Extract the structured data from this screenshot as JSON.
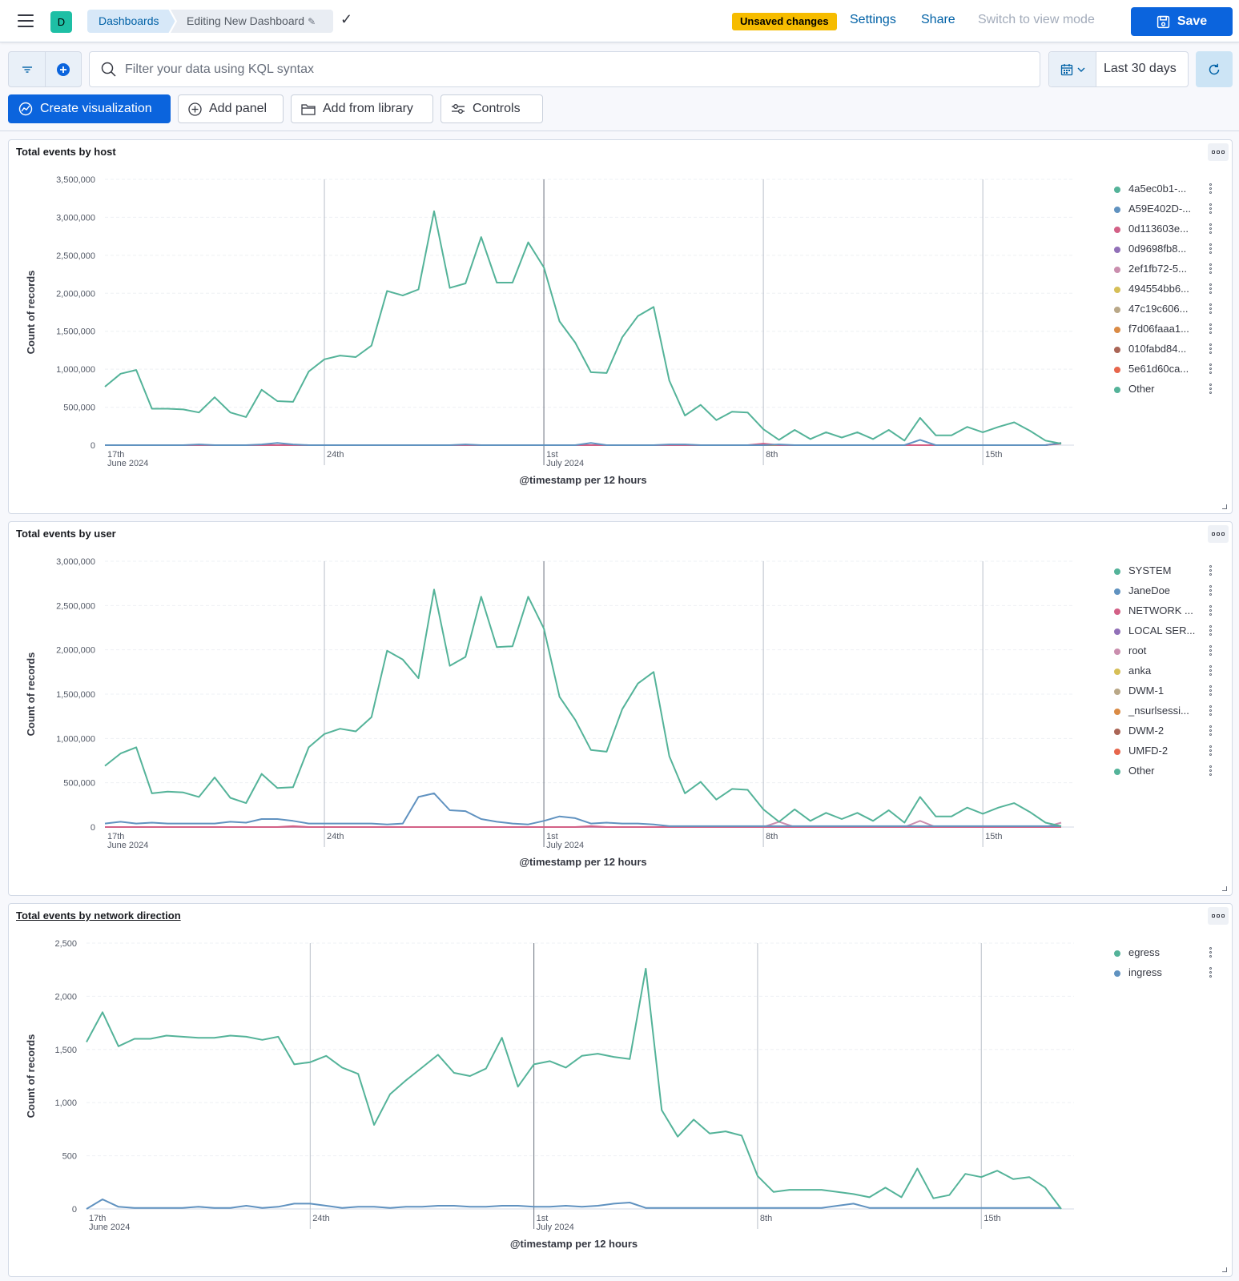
{
  "header": {
    "avatar_letter": "D",
    "breadcrumb_root": "Dashboards",
    "breadcrumb_current": "Editing New Dashboard",
    "unsaved_badge": "Unsaved changes",
    "settings_label": "Settings",
    "share_label": "Share",
    "view_mode_label": "Switch to view mode",
    "save_label": "Save"
  },
  "query": {
    "placeholder": "Filter your data using KQL syntax",
    "date_range": "Last 30 days"
  },
  "actions": {
    "create_visualization": "Create visualization",
    "add_panel": "Add panel",
    "add_from_library": "Add from library",
    "controls": "Controls"
  },
  "colors": {
    "series": [
      "#54b399",
      "#6092c0",
      "#d36086",
      "#9170b8",
      "#ca8eae",
      "#d6bf57",
      "#b9a888",
      "#da8b45",
      "#aa6556",
      "#e7664c",
      "#54b399"
    ]
  },
  "chart_data": [
    {
      "type": "line",
      "title": "Total events by host",
      "xlabel": "@timestamp per 12 hours",
      "ylabel": "Count of records",
      "ylim": [
        0,
        3500000
      ],
      "yticks": [
        "0",
        "500,000",
        "1,000,000",
        "1,500,000",
        "2,000,000",
        "2,500,000",
        "3,000,000",
        "3,500,000"
      ],
      "xticks": [
        {
          "label": "17th",
          "sub": "June 2024",
          "pos": 0
        },
        {
          "label": "24th",
          "sub": "",
          "pos": 14
        },
        {
          "label": "1st",
          "sub": "July 2024",
          "pos": 28
        },
        {
          "label": "8th",
          "sub": "",
          "pos": 42
        },
        {
          "label": "15th",
          "sub": "",
          "pos": 56
        }
      ],
      "x_count": 62,
      "legend_position": "right",
      "series": [
        {
          "name": "4a5ec0b1-...",
          "values": [
            770000,
            940000,
            990000,
            480000,
            480000,
            470000,
            430000,
            630000,
            430000,
            370000,
            730000,
            580000,
            570000,
            970000,
            1130000,
            1180000,
            1160000,
            1310000,
            2030000,
            1970000,
            2050000,
            3080000,
            2070000,
            2130000,
            2740000,
            2140000,
            2140000,
            2670000,
            2340000,
            1630000,
            1350000,
            960000,
            950000,
            1420000,
            1700000,
            1820000,
            850000,
            390000,
            530000,
            330000,
            440000,
            430000,
            210000,
            70000,
            200000,
            80000,
            170000,
            100000,
            170000,
            80000,
            200000,
            60000,
            360000,
            130000,
            130000,
            240000,
            170000,
            240000,
            300000,
            190000,
            60000,
            20000
          ]
        },
        {
          "name": "A59E402D-...",
          "values": [
            0,
            0,
            0,
            0,
            0,
            0,
            10000,
            0,
            0,
            0,
            10000,
            30000,
            10000,
            0,
            0,
            0,
            0,
            0,
            0,
            0,
            0,
            0,
            0,
            10000,
            0,
            0,
            0,
            0,
            0,
            0,
            0,
            30000,
            0,
            0,
            0,
            0,
            10000,
            10000,
            0,
            0,
            0,
            0,
            0,
            10000,
            0,
            0,
            0,
            0,
            0,
            0,
            0,
            0,
            70000,
            0,
            0,
            0,
            0,
            0,
            0,
            0,
            0,
            30000
          ]
        },
        {
          "name": "0d113603e...",
          "values": [
            0,
            0,
            0,
            0,
            0,
            0,
            0,
            0,
            0,
            0,
            0,
            0,
            0,
            0,
            0,
            0,
            0,
            0,
            0,
            0,
            0,
            0,
            0,
            0,
            0,
            0,
            0,
            0,
            0,
            0,
            0,
            0,
            0,
            0,
            0,
            0,
            0,
            0,
            0,
            0,
            0,
            0,
            20000,
            0,
            0,
            0,
            0,
            0,
            0,
            0,
            0,
            0,
            0,
            0,
            0,
            0,
            0,
            0,
            0,
            0,
            0,
            20000
          ]
        },
        {
          "name": "0d9698fb8...",
          "values": []
        },
        {
          "name": "2ef1fb72-5...",
          "values": []
        },
        {
          "name": "494554bb6...",
          "values": []
        },
        {
          "name": "47c19c606...",
          "values": []
        },
        {
          "name": "f7d06faaa1...",
          "values": [
            0,
            0,
            0,
            0,
            0,
            0,
            0,
            0,
            0,
            0,
            0,
            0,
            0,
            0,
            0,
            0,
            0,
            0,
            0,
            0,
            0,
            0,
            0,
            0,
            0,
            0,
            0,
            0,
            0,
            0,
            0,
            0,
            0,
            0,
            0,
            0,
            0,
            0,
            0,
            0,
            0,
            0,
            0,
            0,
            0,
            0,
            0,
            0,
            0,
            0,
            0,
            0,
            0,
            0,
            0,
            0,
            0,
            0,
            0,
            0,
            0,
            30000
          ]
        },
        {
          "name": "010fabd84...",
          "values": []
        },
        {
          "name": "5e61d60ca...",
          "values": []
        },
        {
          "name": "Other",
          "values": []
        }
      ]
    },
    {
      "type": "line",
      "title": "Total events by user",
      "xlabel": "@timestamp per 12 hours",
      "ylabel": "Count of records",
      "ylim": [
        0,
        3000000
      ],
      "yticks": [
        "0",
        "500,000",
        "1,000,000",
        "1,500,000",
        "2,000,000",
        "2,500,000",
        "3,000,000"
      ],
      "xticks": [
        {
          "label": "17th",
          "sub": "June 2024",
          "pos": 0
        },
        {
          "label": "24th",
          "sub": "",
          "pos": 14
        },
        {
          "label": "1st",
          "sub": "July 2024",
          "pos": 28
        },
        {
          "label": "8th",
          "sub": "",
          "pos": 42
        },
        {
          "label": "15th",
          "sub": "",
          "pos": 56
        }
      ],
      "x_count": 62,
      "legend_position": "right",
      "series": [
        {
          "name": "SYSTEM",
          "values": [
            690000,
            830000,
            900000,
            380000,
            400000,
            390000,
            340000,
            560000,
            330000,
            270000,
            600000,
            440000,
            450000,
            900000,
            1050000,
            1110000,
            1080000,
            1240000,
            1990000,
            1890000,
            1680000,
            2680000,
            1820000,
            1920000,
            2600000,
            2030000,
            2040000,
            2600000,
            2240000,
            1470000,
            1210000,
            870000,
            850000,
            1330000,
            1620000,
            1750000,
            800000,
            380000,
            510000,
            310000,
            430000,
            420000,
            200000,
            60000,
            200000,
            70000,
            160000,
            90000,
            160000,
            70000,
            190000,
            50000,
            340000,
            120000,
            120000,
            220000,
            150000,
            220000,
            270000,
            170000,
            50000,
            10000
          ]
        },
        {
          "name": "JaneDoe",
          "values": [
            40000,
            60000,
            40000,
            50000,
            40000,
            40000,
            40000,
            40000,
            60000,
            50000,
            90000,
            90000,
            70000,
            40000,
            40000,
            40000,
            40000,
            40000,
            30000,
            40000,
            340000,
            380000,
            190000,
            180000,
            90000,
            60000,
            40000,
            30000,
            70000,
            120000,
            100000,
            40000,
            50000,
            40000,
            40000,
            30000,
            10000,
            10000,
            10000,
            10000,
            10000,
            10000,
            10000,
            10000,
            10000,
            10000,
            10000,
            10000,
            10000,
            10000,
            10000,
            10000,
            10000,
            10000,
            10000,
            10000,
            10000,
            10000,
            10000,
            10000,
            10000,
            10000
          ]
        },
        {
          "name": "NETWORK ...",
          "values": [
            0,
            0,
            0,
            0,
            0,
            0,
            0,
            0,
            0,
            0,
            0,
            0,
            10000,
            0,
            0,
            0,
            0,
            0,
            0,
            0,
            0,
            0,
            0,
            0,
            0,
            0,
            0,
            0,
            0,
            0,
            0,
            10000,
            0,
            0,
            0,
            0,
            0,
            0,
            0,
            0,
            0,
            0,
            0,
            0,
            0,
            0,
            0,
            0,
            0,
            0,
            0,
            0,
            0,
            0,
            0,
            0,
            0,
            0,
            0,
            0,
            0,
            0
          ]
        },
        {
          "name": "LOCAL SER...",
          "values": []
        },
        {
          "name": "root",
          "values": [
            0,
            0,
            0,
            0,
            0,
            0,
            0,
            0,
            0,
            0,
            0,
            0,
            0,
            0,
            0,
            0,
            0,
            0,
            0,
            0,
            0,
            0,
            0,
            0,
            0,
            0,
            0,
            0,
            0,
            0,
            0,
            0,
            0,
            0,
            0,
            0,
            0,
            0,
            0,
            0,
            0,
            0,
            0,
            60000,
            0,
            0,
            0,
            0,
            0,
            0,
            0,
            0,
            70000,
            0,
            0,
            0,
            0,
            0,
            0,
            0,
            0,
            50000
          ]
        },
        {
          "name": "anka",
          "values": []
        },
        {
          "name": "DWM-1",
          "values": []
        },
        {
          "name": "_nsurlsessi...",
          "values": []
        },
        {
          "name": "DWM-2",
          "values": []
        },
        {
          "name": "UMFD-2",
          "values": []
        },
        {
          "name": "Other",
          "values": []
        }
      ]
    },
    {
      "type": "line",
      "title": "Total events by network direction",
      "xlabel": "@timestamp per 12 hours",
      "ylabel": "Count of records",
      "ylim": [
        0,
        2500
      ],
      "yticks": [
        "0",
        "500",
        "1,000",
        "1,500",
        "2,000",
        "2,500"
      ],
      "xticks": [
        {
          "label": "17th",
          "sub": "June 2024",
          "pos": 0
        },
        {
          "label": "24th",
          "sub": "",
          "pos": 14
        },
        {
          "label": "1st",
          "sub": "July 2024",
          "pos": 28
        },
        {
          "label": "8th",
          "sub": "",
          "pos": 42
        },
        {
          "label": "15th",
          "sub": "",
          "pos": 56
        }
      ],
      "x_count": 62,
      "legend_position": "right",
      "series": [
        {
          "name": "egress",
          "values": [
            1570,
            1850,
            1530,
            1600,
            1600,
            1630,
            1620,
            1610,
            1610,
            1630,
            1620,
            1590,
            1620,
            1360,
            1380,
            1440,
            1330,
            1270,
            790,
            1080,
            1210,
            1330,
            1450,
            1280,
            1250,
            1320,
            1610,
            1150,
            1360,
            1390,
            1330,
            1440,
            1460,
            1430,
            1410,
            2260,
            930,
            680,
            840,
            710,
            730,
            690,
            310,
            160,
            180,
            180,
            180,
            160,
            140,
            110,
            200,
            110,
            380,
            100,
            130,
            330,
            300,
            360,
            280,
            300,
            200,
            0
          ]
        },
        {
          "name": "ingress",
          "values": [
            0,
            90,
            20,
            10,
            10,
            10,
            10,
            20,
            10,
            10,
            30,
            10,
            20,
            50,
            50,
            30,
            10,
            20,
            20,
            10,
            20,
            20,
            30,
            30,
            20,
            20,
            30,
            30,
            20,
            20,
            30,
            20,
            30,
            50,
            60,
            10,
            10,
            10,
            10,
            10,
            10,
            10,
            10,
            10,
            10,
            10,
            10,
            30,
            50,
            10,
            10,
            10,
            10,
            10,
            10,
            10,
            10,
            10,
            10,
            10,
            10,
            10
          ]
        }
      ]
    }
  ]
}
